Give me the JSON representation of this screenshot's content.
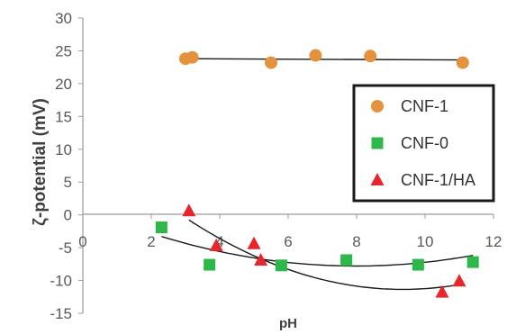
{
  "chart_data": {
    "type": "scatter",
    "title": "",
    "xlabel": "pH",
    "ylabel": "ζ-potential (mV)",
    "xlim": [
      0,
      12
    ],
    "ylim": [
      -15,
      30
    ],
    "x_ticks": [
      0,
      2,
      4,
      6,
      8,
      10,
      12
    ],
    "y_ticks": [
      30,
      25,
      20,
      15,
      10,
      5,
      0,
      -5,
      -10,
      -15
    ],
    "grid": false,
    "legend_position": "right",
    "series": [
      {
        "name": "CNF-1",
        "marker": "circle",
        "color": "#e3923d",
        "points": [
          [
            3.0,
            23.8
          ],
          [
            3.2,
            24.0
          ],
          [
            5.5,
            23.2
          ],
          [
            6.8,
            24.3
          ],
          [
            8.4,
            24.2
          ],
          [
            11.1,
            23.2
          ]
        ],
        "trendline": {
          "type": "linear",
          "from": [
            3.0,
            23.8
          ],
          "to": [
            11.2,
            23.6
          ]
        }
      },
      {
        "name": "CNF-0",
        "marker": "square",
        "color": "#2fb84a",
        "points": [
          [
            2.3,
            -1.9
          ],
          [
            3.7,
            -7.6
          ],
          [
            5.8,
            -7.7
          ],
          [
            7.7,
            -6.9
          ],
          [
            9.8,
            -7.6
          ],
          [
            11.4,
            -7.2
          ]
        ],
        "trendline": {
          "type": "poly2",
          "x_range": [
            2.3,
            11.4
          ],
          "coef": [
            0.1393,
            -2.2245,
            1.0836
          ]
        }
      },
      {
        "name": "CNF-1/HA",
        "marker": "triangle",
        "color": "#e8252a",
        "points": [
          [
            3.1,
            0.6
          ],
          [
            3.9,
            -4.7
          ],
          [
            5.0,
            -4.4
          ],
          [
            5.2,
            -6.9
          ],
          [
            10.5,
            -11.8
          ],
          [
            11.0,
            -10.1
          ]
        ],
        "trendline": {
          "type": "poly2",
          "x_range": [
            3.1,
            11.0
          ],
          "coef": [
            0.2706,
            -5.0616,
            12.3125
          ]
        }
      }
    ]
  }
}
